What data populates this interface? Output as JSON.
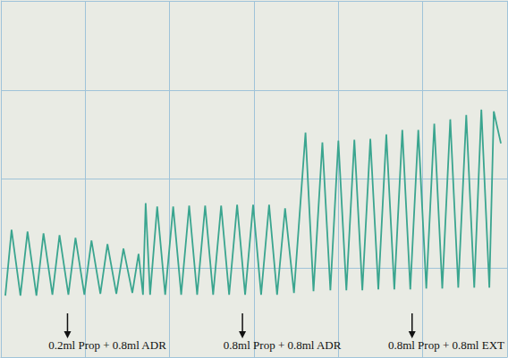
{
  "chart_data": {
    "type": "line",
    "x": [
      5,
      12,
      22,
      30,
      40,
      48,
      58,
      66,
      76,
      84,
      94,
      102,
      112,
      120,
      130,
      138,
      148,
      155,
      160,
      163,
      168,
      176,
      185,
      194,
      203,
      212,
      221,
      230,
      239,
      248,
      257,
      266,
      275,
      284,
      293,
      302,
      311,
      320,
      330,
      343,
      352,
      362,
      371,
      380,
      389,
      398,
      407,
      416,
      425,
      434,
      443,
      452,
      461,
      470,
      479,
      488,
      497,
      506,
      515,
      524,
      533,
      541,
      550,
      555,
      563
    ],
    "values": [
      69,
      143,
      69,
      141,
      69,
      139,
      70,
      137,
      70,
      134,
      70,
      131,
      71,
      127,
      71,
      122,
      72,
      116,
      70,
      173,
      70,
      169,
      70,
      169,
      70,
      170,
      70,
      170,
      70,
      170,
      70,
      171,
      70,
      171,
      70,
      171,
      70,
      167,
      72,
      252,
      74,
      241,
      75,
      243,
      75,
      244,
      75,
      245,
      76,
      250,
      76,
      255,
      76,
      255,
      77,
      262,
      77,
      267,
      78,
      272,
      78,
      278,
      78,
      276,
      240
    ],
    "color": "#3aa58f",
    "xlim": [
      0,
      570
    ],
    "xticks": [
      0,
      95,
      190,
      285,
      380,
      475,
      570
    ],
    "ylim": [
      0,
      400
    ],
    "yticks": [
      0,
      100,
      200,
      300,
      400
    ],
    "grid": true,
    "tick_labels": false,
    "annotations": [
      {
        "text": "0.2ml Prop + 0.8ml ADR",
        "x": 75
      },
      {
        "text": "0.8ml Prop + 0.8ml ADR",
        "x": 272
      },
      {
        "text": "0.8ml Prop + 0.8ml EXT",
        "x": 463
      }
    ]
  }
}
